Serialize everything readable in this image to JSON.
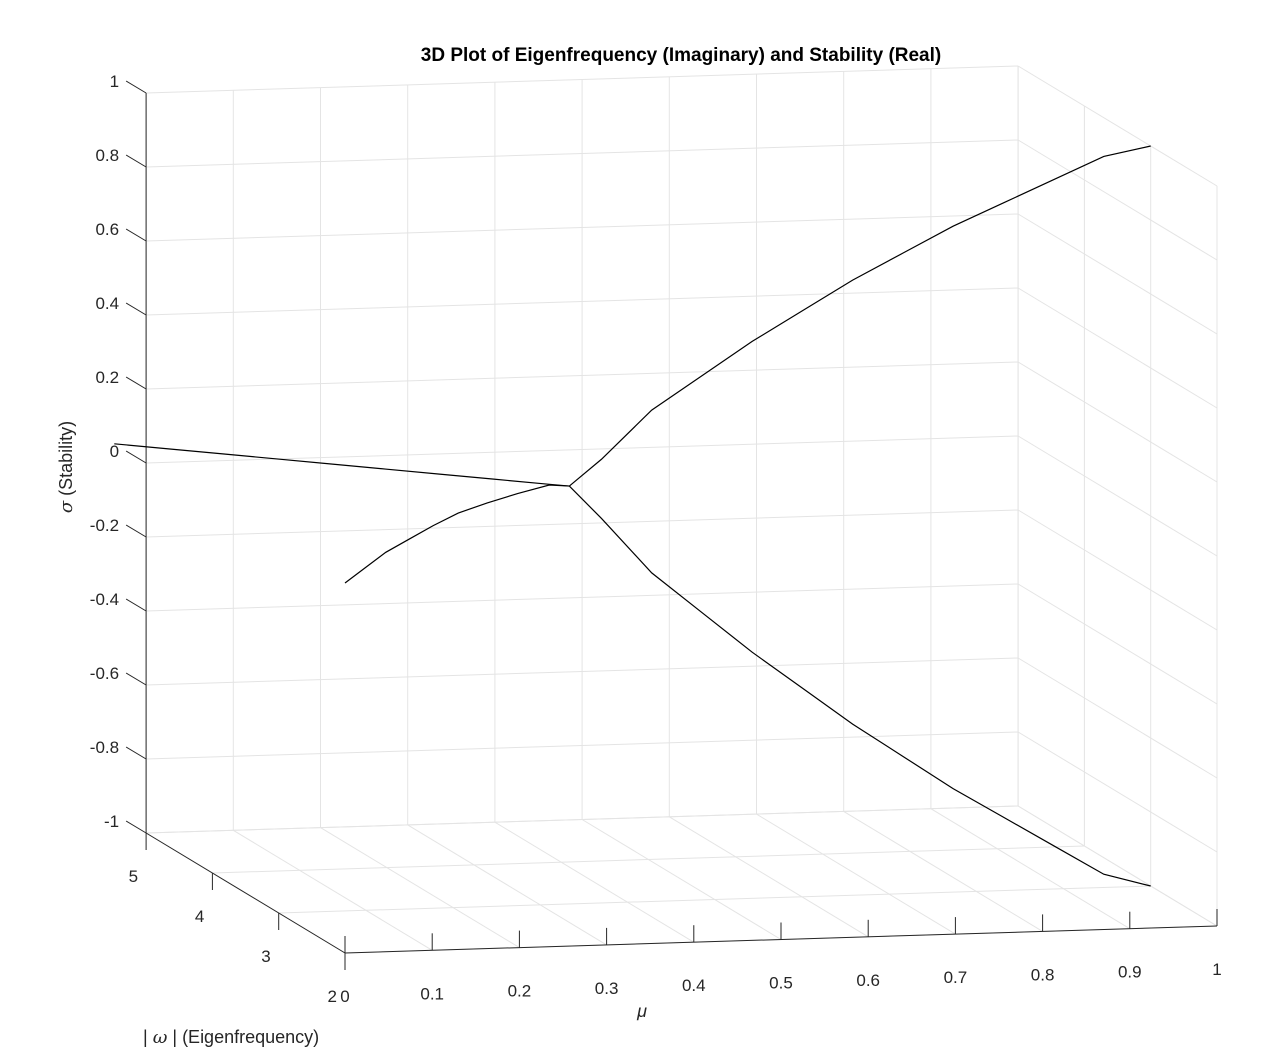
{
  "chart_data": {
    "type": "line3d",
    "title": "3D Plot of Eigenfrequency (Imaginary) and Stability (Real)",
    "xlabel": "μ",
    "ylabel": "| ω | (Eigenfrequency)",
    "zlabel": "σ (Stability)",
    "z_label_symbol": "σ",
    "z_label_text": "(Stability)",
    "y_label_symbol": "ω",
    "y_label_text": "(Eigenfrequency)",
    "xlim": [
      0,
      1
    ],
    "ylim": [
      2,
      5
    ],
    "zlim": [
      -1,
      1
    ],
    "x_ticks": [
      0,
      0.1,
      0.2,
      0.3,
      0.4,
      0.5,
      0.6,
      0.7,
      0.8,
      0.9,
      1
    ],
    "x_tick_labels": [
      "0",
      "0.1",
      "0.2",
      "0.3",
      "0.4",
      "0.5",
      "0.6",
      "0.7",
      "0.8",
      "0.9",
      "1"
    ],
    "y_ticks": [
      2,
      3,
      4,
      5
    ],
    "y_tick_labels": [
      "2",
      "3",
      "4",
      "5"
    ],
    "z_ticks": [
      -1,
      -0.8,
      -0.6,
      -0.4,
      -0.2,
      0,
      0.2,
      0.4,
      0.6,
      0.8,
      1
    ],
    "z_tick_labels": [
      "-1",
      "-0.8",
      "-0.6",
      "-0.4",
      "-0.2",
      "0",
      "0.2",
      "0.4",
      "0.6",
      "0.8",
      "1"
    ],
    "grid": true,
    "line_color": "#000000",
    "series": [
      {
        "x": [
          0,
          0.05,
          0.1,
          0.15,
          0.2,
          0.25,
          0.3,
          0.35,
          0.4,
          0.42,
          0.45,
          0.5,
          0.55,
          0.6,
          0.65,
          0.7,
          0.75,
          0.8,
          0.85,
          0.9,
          0.95,
          1
        ],
        "y": [
          5.48,
          5.32,
          5.16,
          5.0,
          4.84,
          4.68,
          4.52,
          4.36,
          4.2,
          4.14,
          4.05,
          3.95,
          3.85,
          3.75,
          3.65,
          3.55,
          3.45,
          3.35,
          3.25,
          3.15,
          3.05,
          3.0
        ],
        "z": [
          0,
          0,
          0,
          0,
          0,
          0,
          0,
          0,
          0,
          0,
          0.08,
          0.22,
          0.32,
          0.42,
          0.51,
          0.6,
          0.68,
          0.76,
          0.83,
          0.9,
          0.97,
          1.0
        ]
      },
      {
        "x": [
          0,
          0.05,
          0.1,
          0.15,
          0.2,
          0.25,
          0.3,
          0.35,
          0.4,
          0.42,
          0.45,
          0.5,
          0.55,
          0.6,
          0.65,
          0.7,
          0.75,
          0.8,
          0.85,
          0.9,
          0.95,
          1
        ],
        "y": [
          2.0,
          2.35,
          2.7,
          3.0,
          3.3,
          3.58,
          3.8,
          4.0,
          4.18,
          4.14,
          4.05,
          3.95,
          3.85,
          3.75,
          3.65,
          3.55,
          3.45,
          3.35,
          3.25,
          3.15,
          3.05,
          3.0
        ],
        "z": [
          0,
          0,
          0,
          0,
          0,
          0,
          0,
          0,
          0,
          0,
          -0.08,
          -0.22,
          -0.32,
          -0.42,
          -0.51,
          -0.6,
          -0.68,
          -0.76,
          -0.83,
          -0.9,
          -0.97,
          -1.0
        ]
      }
    ]
  }
}
